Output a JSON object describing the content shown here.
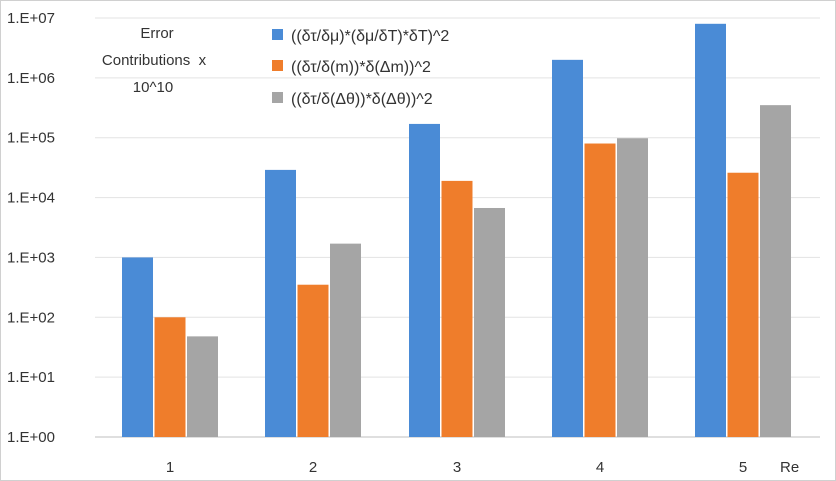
{
  "chart_data": {
    "type": "bar",
    "annotation_lines": [
      "Error",
      "Contributions  x",
      "10^10"
    ],
    "xlabel": "Re",
    "categories": [
      "1",
      "2",
      "3",
      "4",
      "5"
    ],
    "yscale": "log",
    "ylim": [
      1,
      10000000
    ],
    "ytick_labels": [
      "1.E+00",
      "1.E+01",
      "1.E+02",
      "1.E+03",
      "1.E+04",
      "1.E+05",
      "1.E+06",
      "1.E+07"
    ],
    "grid": true,
    "legend_position": "top-center",
    "series": [
      {
        "name": "((δτ/δμ)*(δμ/δT)*δT)^2",
        "color": "#4a8bd6",
        "values": [
          1000,
          29000,
          170000,
          2000000,
          8000000
        ]
      },
      {
        "name": "((δτ/δ(m))*δ(Δm))^2",
        "color": "#ef7d2b",
        "values": [
          100,
          350,
          19000,
          80000,
          26000
        ]
      },
      {
        "name": "((δτ/δ(Δθ))*δ(Δθ))^2",
        "color": "#a5a5a5",
        "values": [
          48,
          1700,
          6700,
          98000,
          350000
        ]
      }
    ]
  }
}
